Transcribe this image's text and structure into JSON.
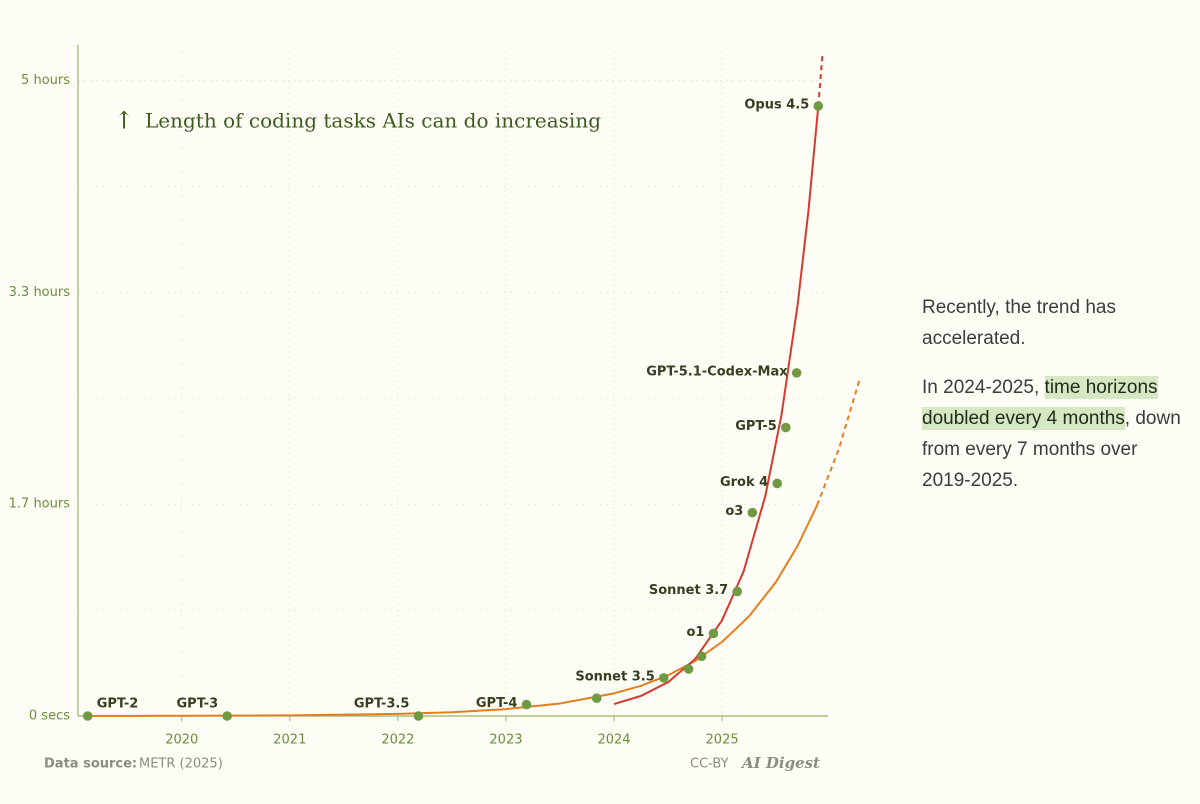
{
  "chart_data": {
    "type": "scatter",
    "title": "Length of coding tasks AIs can do increasing",
    "xlim": [
      2019.04,
      2025.98
    ],
    "xticks": [
      2020,
      2021,
      2022,
      2023,
      2024,
      2025
    ],
    "ylim": [
      0,
      5.28
    ],
    "yticks": [
      {
        "value": 0,
        "label": "0 secs"
      },
      {
        "value": 1.6667,
        "label": "1.7 hours"
      },
      {
        "value": 3.3333,
        "label": "3.3 hours"
      },
      {
        "value": 5,
        "label": "5 hours"
      }
    ],
    "grid": true,
    "points": {
      "color": "#6f9a42",
      "labels": [
        "GPT-2",
        "GPT-3",
        "GPT-3.5",
        "GPT-4",
        null,
        "Sonnet 3.5",
        null,
        null,
        "o1",
        "Sonnet 3.7",
        "o3",
        "Grok 4",
        "GPT-5",
        "GPT-5.1-Codex-Max",
        "Opus 4.5"
      ],
      "x": [
        2019.13,
        2020.42,
        2022.19,
        2023.19,
        2023.84,
        2024.46,
        2024.69,
        2024.81,
        2024.92,
        2025.14,
        2025.28,
        2025.51,
        2025.59,
        2025.69,
        2025.89
      ],
      "values": [
        0,
        0,
        0,
        0.09,
        0.14,
        0.3,
        0.37,
        0.47,
        0.65,
        0.98,
        1.6,
        1.83,
        2.27,
        2.7,
        4.8
      ]
    },
    "trend_lines": [
      {
        "color": "#e2801f",
        "style": "solid",
        "x": [
          2019.13,
          2020,
          2021,
          2022,
          2022.5,
          2023,
          2023.5,
          2024,
          2024.25,
          2024.5,
          2024.75,
          2025,
          2025.25,
          2025.5,
          2025.7,
          2025.88
        ],
        "values": [
          0.00054,
          0.0015,
          0.005,
          0.0165,
          0.03,
          0.054,
          0.098,
          0.178,
          0.238,
          0.321,
          0.433,
          0.583,
          0.785,
          1.056,
          1.34,
          1.66
        ]
      },
      {
        "color": "#e2801f",
        "style": "dashed",
        "x": [
          2025.88,
          2026.08,
          2026.27
        ],
        "values": [
          1.66,
          2.1,
          2.64
        ]
      },
      {
        "color": "#d63a2f",
        "style": "solid",
        "x": [
          2024,
          2024.25,
          2024.5,
          2024.75,
          2025,
          2025.2,
          2025.4,
          2025.55,
          2025.7,
          2025.8,
          2025.89
        ],
        "values": [
          0.094,
          0.158,
          0.267,
          0.448,
          0.754,
          1.14,
          1.73,
          2.37,
          3.24,
          3.98,
          4.8
        ]
      },
      {
        "color": "#d63a2f",
        "style": "dashed",
        "x": [
          2025.89,
          2025.93
        ],
        "values": [
          4.8,
          5.22
        ]
      }
    ],
    "source_label": "Data source:",
    "source": "METR (2025)",
    "license": "CC-BY",
    "brand": "AI Digest"
  },
  "sidebar": {
    "p1": "Recently, the trend has accelerated.",
    "p2_before": "In 2024-2025, ",
    "p2_highlight": "time horizons doubled every 4 months",
    "p2_after": ", down from every 7 months over 2019-2025."
  }
}
